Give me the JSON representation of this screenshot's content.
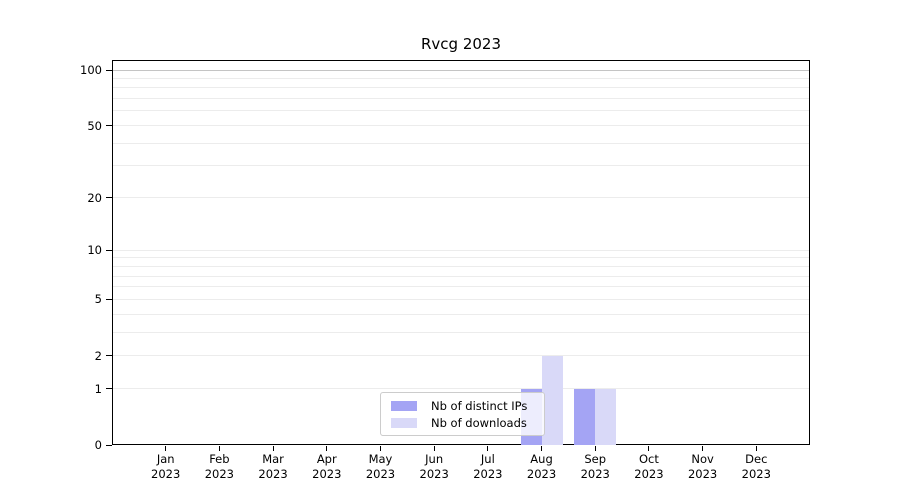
{
  "title": "Rvcg 2023",
  "colors": {
    "distinct_ips_bar": "#a4a4f4",
    "downloads_bar": "#d9d9f8",
    "gridline_minor": "#ececec",
    "gridline_major": "#ececec",
    "gridline_top_100": "#c4c4c4",
    "axis_spine": "#000000",
    "legend_border": "#cccccc",
    "background": "#ffffff"
  },
  "chart_data": {
    "type": "bar",
    "title": "Rvcg 2023",
    "categories": [
      "Jan 2023",
      "Feb 2023",
      "Mar 2023",
      "Apr 2023",
      "May 2023",
      "Jun 2023",
      "Jul 2023",
      "Aug 2023",
      "Sep 2023",
      "Oct 2023",
      "Nov 2023",
      "Dec 2023"
    ],
    "x_tick_line1": [
      "Jan",
      "Feb",
      "Mar",
      "Apr",
      "May",
      "Jun",
      "Jul",
      "Aug",
      "Sep",
      "Oct",
      "Nov",
      "Dec"
    ],
    "x_tick_line2": [
      "2023",
      "2023",
      "2023",
      "2023",
      "2023",
      "2023",
      "2023",
      "2023",
      "2023",
      "2023",
      "2023",
      "2023"
    ],
    "series": [
      {
        "name": "Nb of distinct IPs",
        "color": "#a4a4f4",
        "values": [
          0,
          0,
          0,
          0,
          0,
          0,
          0,
          1,
          1,
          0,
          0,
          0
        ]
      },
      {
        "name": "Nb of downloads",
        "color": "#d9d9f8",
        "values": [
          0,
          0,
          0,
          0,
          0,
          0,
          0,
          2,
          1,
          0,
          0,
          0
        ]
      }
    ],
    "xlabel": "",
    "ylabel": "",
    "y_scale": "log(1+x)",
    "ylim": [
      0,
      113
    ],
    "y_ticks": [
      0,
      1,
      2,
      5,
      10,
      20,
      50,
      100
    ],
    "y_minor_gridlines": [
      3,
      4,
      6,
      7,
      8,
      9,
      30,
      40,
      60,
      70,
      80,
      90
    ],
    "grid": "horizontal",
    "legend_position": "inside-bottom-center"
  },
  "legend": {
    "items": [
      {
        "label": "Nb of distinct IPs"
      },
      {
        "label": "Nb of downloads"
      }
    ]
  }
}
